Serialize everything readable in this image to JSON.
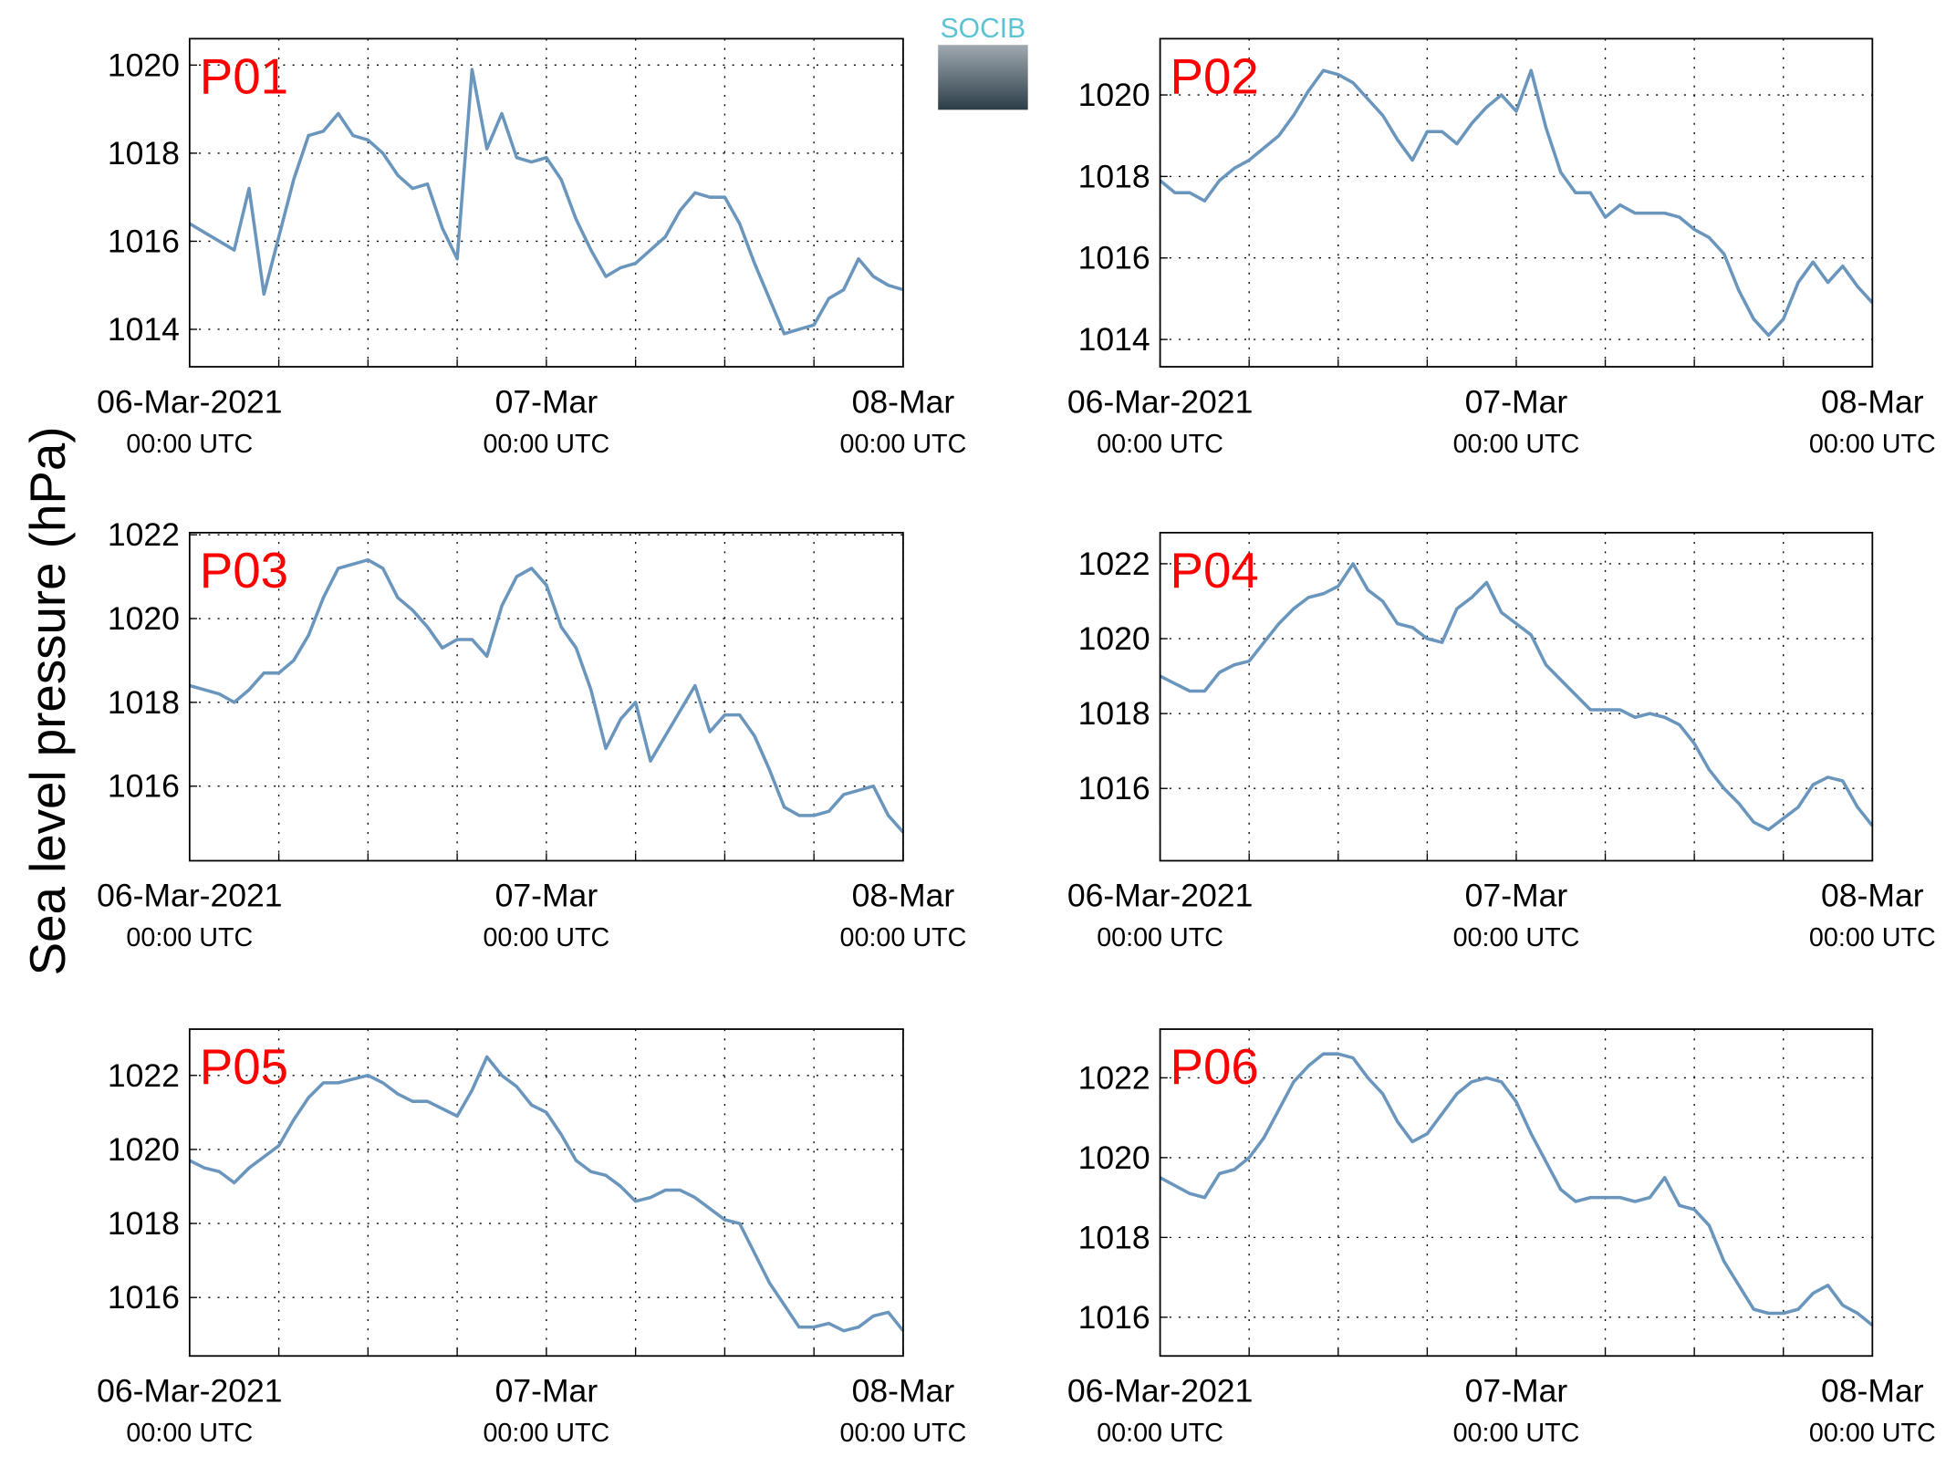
{
  "figure": {
    "ylabel": "Sea level pressure (hPa)",
    "logo": "SOCIB"
  },
  "chart_data": [
    {
      "type": "line",
      "title": "P01",
      "color": "#6a96bd",
      "grid": true,
      "xlim": [
        0,
        48
      ],
      "xticks": [
        {
          "value": 0,
          "label": "06-Mar-2021",
          "sublabel": "00:00 UTC"
        },
        {
          "value": 24,
          "label": "07-Mar",
          "sublabel": "00:00 UTC"
        },
        {
          "value": 48,
          "label": "08-Mar",
          "sublabel": "00:00 UTC"
        }
      ],
      "xminor": [
        6,
        12,
        18,
        30,
        36,
        42
      ],
      "ylim": [
        1013.15,
        1020.6
      ],
      "yticks": [
        1014,
        1016,
        1018,
        1020
      ],
      "x": [
        0,
        1,
        2,
        3,
        4,
        5,
        6,
        7,
        8,
        9,
        10,
        11,
        12,
        13,
        14,
        15,
        16,
        17,
        18,
        19,
        20,
        21,
        22,
        23,
        24,
        25,
        26,
        27,
        28,
        29,
        30,
        31,
        32,
        33,
        34,
        35,
        36,
        37,
        38,
        39,
        40,
        41,
        42,
        43,
        44,
        45,
        46,
        47,
        48
      ],
      "values": [
        1016.4,
        1016.2,
        1016.0,
        1015.8,
        1017.2,
        1014.8,
        1016.1,
        1017.4,
        1018.4,
        1018.5,
        1018.9,
        1018.4,
        1018.3,
        1018.0,
        1017.5,
        1017.2,
        1017.3,
        1016.3,
        1015.6,
        1019.9,
        1018.1,
        1018.9,
        1017.9,
        1017.8,
        1017.9,
        1017.4,
        1016.5,
        1015.8,
        1015.2,
        1015.4,
        1015.5,
        1015.8,
        1016.1,
        1016.7,
        1017.1,
        1017.0,
        1017.0,
        1016.4,
        1015.5,
        1014.7,
        1013.9,
        1014.0,
        1014.1,
        1014.7,
        1014.9,
        1015.6,
        1015.2,
        1015.0,
        1014.9
      ]
    },
    {
      "type": "line",
      "title": "P02",
      "color": "#6a96bd",
      "grid": true,
      "xlim": [
        0,
        48
      ],
      "xticks": [
        {
          "value": 0,
          "label": "06-Mar-2021",
          "sublabel": "00:00 UTC"
        },
        {
          "value": 24,
          "label": "07-Mar",
          "sublabel": "00:00 UTC"
        },
        {
          "value": 48,
          "label": "08-Mar",
          "sublabel": "00:00 UTC"
        }
      ],
      "xminor": [
        6,
        12,
        18,
        30,
        36,
        42
      ],
      "ylim": [
        1013.33,
        1021.38
      ],
      "yticks": [
        1014,
        1016,
        1018,
        1020
      ],
      "x": [
        0,
        1,
        2,
        3,
        4,
        5,
        6,
        7,
        8,
        9,
        10,
        11,
        12,
        13,
        14,
        15,
        16,
        17,
        18,
        19,
        20,
        21,
        22,
        23,
        24,
        25,
        26,
        27,
        28,
        29,
        30,
        31,
        32,
        33,
        34,
        35,
        36,
        37,
        38,
        39,
        40,
        41,
        42,
        43,
        44,
        45,
        46,
        47,
        48
      ],
      "values": [
        1017.9,
        1017.6,
        1017.6,
        1017.4,
        1017.9,
        1018.2,
        1018.4,
        1018.7,
        1019.0,
        1019.5,
        1020.1,
        1020.6,
        1020.5,
        1020.3,
        1019.9,
        1019.5,
        1018.9,
        1018.4,
        1019.1,
        1019.1,
        1018.8,
        1019.3,
        1019.7,
        1020.0,
        1019.6,
        1020.6,
        1019.2,
        1018.1,
        1017.6,
        1017.6,
        1017.0,
        1017.3,
        1017.1,
        1017.1,
        1017.1,
        1017.0,
        1016.7,
        1016.5,
        1016.1,
        1015.2,
        1014.5,
        1014.1,
        1014.5,
        1015.4,
        1015.9,
        1015.4,
        1015.8,
        1015.3,
        1014.9
      ]
    },
    {
      "type": "line",
      "title": "P03",
      "color": "#6a96bd",
      "grid": true,
      "xlim": [
        0,
        48
      ],
      "xticks": [
        {
          "value": 0,
          "label": "06-Mar-2021",
          "sublabel": "00:00 UTC"
        },
        {
          "value": 24,
          "label": "07-Mar",
          "sublabel": "00:00 UTC"
        },
        {
          "value": 48,
          "label": "08-Mar",
          "sublabel": "00:00 UTC"
        }
      ],
      "xminor": [
        6,
        12,
        18,
        30,
        36,
        42
      ],
      "ylim": [
        1014.22,
        1022.05
      ],
      "yticks": [
        1016,
        1018,
        1020,
        1022
      ],
      "x": [
        0,
        1,
        2,
        3,
        4,
        5,
        6,
        7,
        8,
        9,
        10,
        11,
        12,
        13,
        14,
        15,
        16,
        17,
        18,
        19,
        20,
        21,
        22,
        23,
        24,
        25,
        26,
        27,
        28,
        29,
        30,
        31,
        32,
        33,
        34,
        35,
        36,
        37,
        38,
        39,
        40,
        41,
        42,
        43,
        44,
        45,
        46,
        47,
        48
      ],
      "values": [
        1018.4,
        1018.3,
        1018.2,
        1018.0,
        1018.3,
        1018.7,
        1018.7,
        1019.0,
        1019.6,
        1020.5,
        1021.2,
        1021.3,
        1021.4,
        1021.2,
        1020.5,
        1020.2,
        1019.8,
        1019.3,
        1019.5,
        1019.5,
        1019.1,
        1020.3,
        1021.0,
        1021.2,
        1020.8,
        1019.8,
        1019.3,
        1018.3,
        1016.9,
        1017.6,
        1018.0,
        1016.6,
        1017.2,
        1017.8,
        1018.4,
        1017.3,
        1017.7,
        1017.7,
        1017.2,
        1016.4,
        1015.5,
        1015.3,
        1015.3,
        1015.4,
        1015.8,
        1015.9,
        1016.0,
        1015.3,
        1014.9
      ]
    },
    {
      "type": "line",
      "title": "P04",
      "color": "#6a96bd",
      "grid": true,
      "xlim": [
        0,
        48
      ],
      "xticks": [
        {
          "value": 0,
          "label": "06-Mar-2021",
          "sublabel": "00:00 UTC"
        },
        {
          "value": 24,
          "label": "07-Mar",
          "sublabel": "00:00 UTC"
        },
        {
          "value": 48,
          "label": "08-Mar",
          "sublabel": "00:00 UTC"
        }
      ],
      "xminor": [
        6,
        12,
        18,
        30,
        36,
        42
      ],
      "ylim": [
        1014.07,
        1022.83
      ],
      "yticks": [
        1016,
        1018,
        1020,
        1022
      ],
      "x": [
        0,
        1,
        2,
        3,
        4,
        5,
        6,
        7,
        8,
        9,
        10,
        11,
        12,
        13,
        14,
        15,
        16,
        17,
        18,
        19,
        20,
        21,
        22,
        23,
        24,
        25,
        26,
        27,
        28,
        29,
        30,
        31,
        32,
        33,
        34,
        35,
        36,
        37,
        38,
        39,
        40,
        41,
        42,
        43,
        44,
        45,
        46,
        47,
        48
      ],
      "values": [
        1019.0,
        1018.8,
        1018.6,
        1018.6,
        1019.1,
        1019.3,
        1019.4,
        1019.9,
        1020.4,
        1020.8,
        1021.1,
        1021.2,
        1021.4,
        1022.0,
        1021.3,
        1021.0,
        1020.4,
        1020.3,
        1020.0,
        1019.9,
        1020.8,
        1021.1,
        1021.5,
        1020.7,
        1020.4,
        1020.1,
        1019.3,
        1018.9,
        1018.5,
        1018.1,
        1018.1,
        1018.1,
        1017.9,
        1018.0,
        1017.9,
        1017.7,
        1017.2,
        1016.5,
        1016.0,
        1015.6,
        1015.1,
        1014.9,
        1015.2,
        1015.5,
        1016.1,
        1016.3,
        1016.2,
        1015.5,
        1015.0
      ]
    },
    {
      "type": "line",
      "title": "P05",
      "color": "#6a96bd",
      "grid": true,
      "xlim": [
        0,
        48
      ],
      "xticks": [
        {
          "value": 0,
          "label": "06-Mar-2021",
          "sublabel": "00:00 UTC"
        },
        {
          "value": 24,
          "label": "07-Mar",
          "sublabel": "00:00 UTC"
        },
        {
          "value": 48,
          "label": "08-Mar",
          "sublabel": "00:00 UTC"
        }
      ],
      "xminor": [
        6,
        12,
        18,
        30,
        36,
        42
      ],
      "ylim": [
        1014.42,
        1023.25
      ],
      "yticks": [
        1016,
        1018,
        1020,
        1022
      ],
      "x": [
        0,
        1,
        2,
        3,
        4,
        5,
        6,
        7,
        8,
        9,
        10,
        11,
        12,
        13,
        14,
        15,
        16,
        17,
        18,
        19,
        20,
        21,
        22,
        23,
        24,
        25,
        26,
        27,
        28,
        29,
        30,
        31,
        32,
        33,
        34,
        35,
        36,
        37,
        38,
        39,
        40,
        41,
        42,
        43,
        44,
        45,
        46,
        47,
        48
      ],
      "values": [
        1019.7,
        1019.5,
        1019.4,
        1019.1,
        1019.5,
        1019.8,
        1020.1,
        1020.8,
        1021.4,
        1021.8,
        1021.8,
        1021.9,
        1022.0,
        1021.8,
        1021.5,
        1021.3,
        1021.3,
        1021.1,
        1020.9,
        1021.6,
        1022.5,
        1022.0,
        1021.7,
        1021.2,
        1021.0,
        1020.4,
        1019.7,
        1019.4,
        1019.3,
        1019.0,
        1018.6,
        1018.7,
        1018.9,
        1018.9,
        1018.7,
        1018.4,
        1018.1,
        1018.0,
        1017.2,
        1016.4,
        1015.8,
        1015.2,
        1015.2,
        1015.3,
        1015.1,
        1015.2,
        1015.5,
        1015.6,
        1015.1
      ]
    },
    {
      "type": "line",
      "title": "P06",
      "color": "#6a96bd",
      "grid": true,
      "xlim": [
        0,
        48
      ],
      "xticks": [
        {
          "value": 0,
          "label": "06-Mar-2021",
          "sublabel": "00:00 UTC"
        },
        {
          "value": 24,
          "label": "07-Mar",
          "sublabel": "00:00 UTC"
        },
        {
          "value": 48,
          "label": "08-Mar",
          "sublabel": "00:00 UTC"
        }
      ],
      "xminor": [
        6,
        12,
        18,
        30,
        36,
        42
      ],
      "ylim": [
        1015.03,
        1023.22
      ],
      "yticks": [
        1016,
        1018,
        1020,
        1022
      ],
      "x": [
        0,
        1,
        2,
        3,
        4,
        5,
        6,
        7,
        8,
        9,
        10,
        11,
        12,
        13,
        14,
        15,
        16,
        17,
        18,
        19,
        20,
        21,
        22,
        23,
        24,
        25,
        26,
        27,
        28,
        29,
        30,
        31,
        32,
        33,
        34,
        35,
        36,
        37,
        38,
        39,
        40,
        41,
        42,
        43,
        44,
        45,
        46,
        47,
        48
      ],
      "values": [
        1019.5,
        1019.3,
        1019.1,
        1019.0,
        1019.6,
        1019.7,
        1020.0,
        1020.5,
        1021.2,
        1021.9,
        1022.3,
        1022.6,
        1022.6,
        1022.5,
        1022.0,
        1021.6,
        1020.9,
        1020.4,
        1020.6,
        1021.1,
        1021.6,
        1021.9,
        1022.0,
        1021.9,
        1021.4,
        1020.6,
        1019.9,
        1019.2,
        1018.9,
        1019.0,
        1019.0,
        1019.0,
        1018.9,
        1019.0,
        1019.5,
        1018.8,
        1018.7,
        1018.3,
        1017.4,
        1016.8,
        1016.2,
        1016.1,
        1016.1,
        1016.2,
        1016.6,
        1016.8,
        1016.3,
        1016.1,
        1015.8
      ]
    }
  ]
}
